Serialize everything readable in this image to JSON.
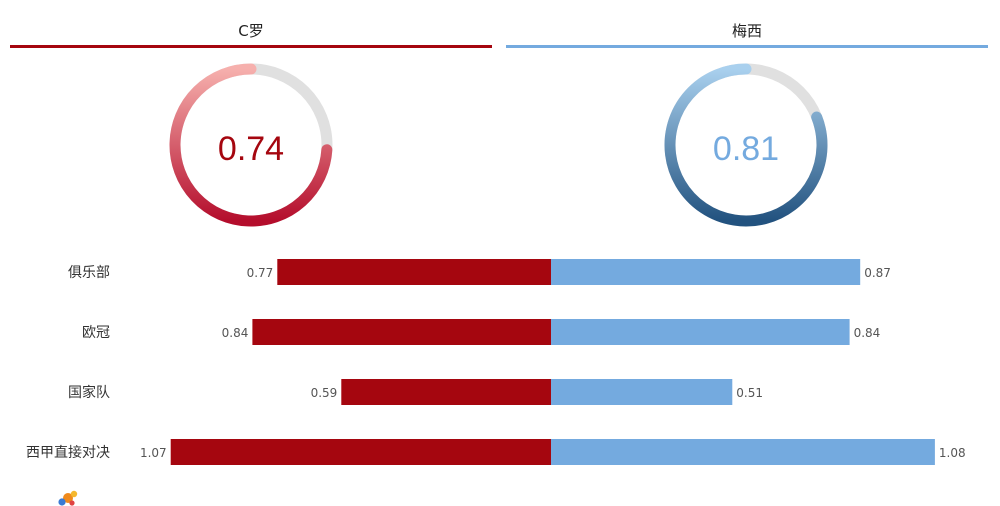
{
  "chart_data": {
    "type": "bar",
    "players": [
      {
        "name": "C罗",
        "score": 0.74,
        "color": "#a5060f"
      },
      {
        "name": "梅西",
        "score": 0.81,
        "color": "#74aadf"
      }
    ],
    "categories": [
      "俱乐部",
      "欧冠",
      "国家队",
      "西甲直接对决"
    ],
    "series": [
      {
        "name": "C罗",
        "values": [
          0.77,
          0.84,
          0.59,
          1.07
        ]
      },
      {
        "name": "梅西",
        "values": [
          0.87,
          0.84,
          0.51,
          1.08
        ]
      }
    ],
    "value_labels": {
      "left": [
        "0.77",
        "0.84",
        "0.59",
        "1.07"
      ],
      "right": [
        "0.87",
        "0.84",
        "0.51",
        "1.08"
      ]
    },
    "score_labels": [
      "0.74",
      "0.81"
    ],
    "xlim": [
      0,
      1.1
    ]
  }
}
